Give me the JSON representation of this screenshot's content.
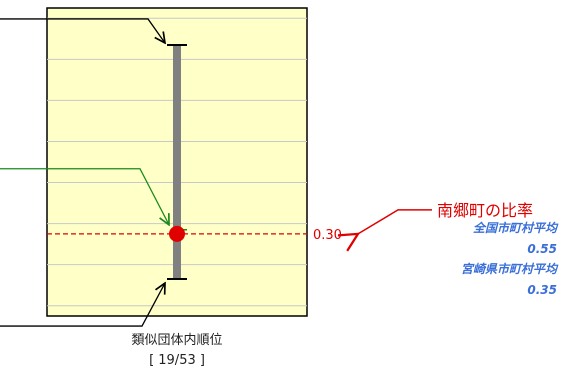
{
  "chart_data": {
    "type": "range",
    "ylim": [
      0.1,
      0.85
    ],
    "gridlines": [
      0.125,
      0.225,
      0.325,
      0.425,
      0.525,
      0.625,
      0.725,
      0.825
    ],
    "range": {
      "max": 0.76,
      "mid": 0.31,
      "min": 0.19
    },
    "ratio": {
      "value": 0.3,
      "label": "0.30",
      "town_label": "南郷町の比率"
    },
    "averages": [
      {
        "name": "全国市町村平均",
        "value": "0.55"
      },
      {
        "name": "宮崎県市町村平均",
        "value": "0.35"
      }
    ],
    "rank": {
      "title": "類似団体内順位",
      "value": "[ 19/53 ]"
    }
  },
  "colors": {
    "plot_bg": "#ffffc8",
    "grid": "#c8c8c8",
    "bar": "#808080",
    "ratio": "#e00000",
    "mid_arrow": "#1a8a1a",
    "black": "#000000",
    "avg_text": "#3a6fd8"
  }
}
